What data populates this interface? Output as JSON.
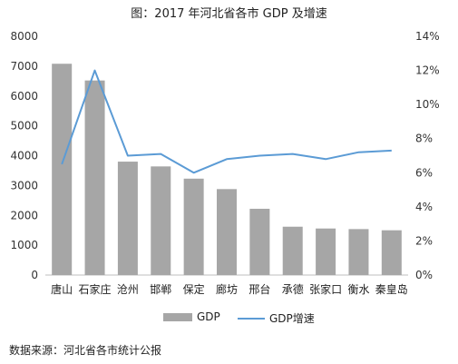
{
  "chart_data": {
    "type": "bar",
    "title": "图：2017 年河北省各市 GDP 及增速",
    "categories": [
      "唐山",
      "石家庄",
      "沧州",
      "邯郸",
      "保定",
      "廊坊",
      "邢台",
      "承德",
      "张家口",
      "衡水",
      "秦皇岛"
    ],
    "series": [
      {
        "name": "GDP",
        "type": "bar",
        "axis": "left",
        "values": [
          7080,
          6520,
          3800,
          3640,
          3230,
          2880,
          2220,
          1620,
          1560,
          1540,
          1500
        ]
      },
      {
        "name": "GDP增速",
        "type": "line",
        "axis": "right",
        "values": [
          6.5,
          12.0,
          7.0,
          7.1,
          6.0,
          6.8,
          7.0,
          7.1,
          6.8,
          7.2,
          7.3
        ]
      }
    ],
    "y_left": {
      "min": 0,
      "max": 8000,
      "ticks": [
        "0",
        "1000",
        "2000",
        "3000",
        "4000",
        "5000",
        "6000",
        "7000",
        "8000"
      ]
    },
    "y_right": {
      "min": 0,
      "max": 14,
      "ticks": [
        "0%",
        "2%",
        "4%",
        "6%",
        "8%",
        "10%",
        "12%",
        "14%"
      ]
    },
    "grid": false,
    "legend_position": "bottom",
    "colors": {
      "bar": "#a6a6a6",
      "line": "#5b9bd5"
    }
  },
  "legend": {
    "bar_label": "GDP",
    "line_label": "GDP增速"
  },
  "source": "数据来源：河北省各市统计公报"
}
